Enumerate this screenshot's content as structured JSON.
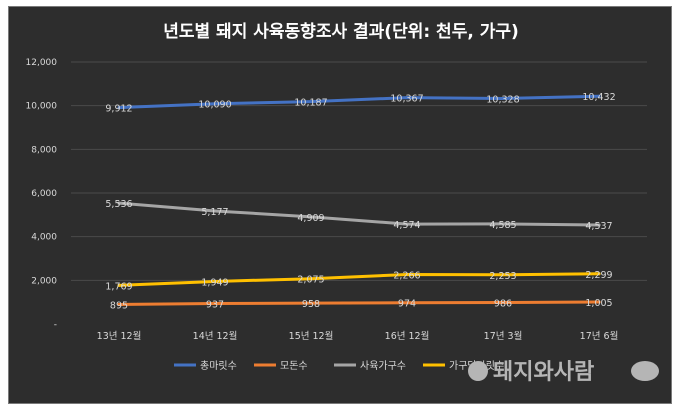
{
  "chart_data": {
    "type": "line",
    "title": "년도별 돼지 사육동향조사 결과(단위: 천두, 가구)",
    "categories": [
      "13년 12월",
      "14년 12월",
      "15년 12월",
      "16년 12월",
      "17년 3월",
      "17년 6월"
    ],
    "y_tick_labels": [
      "-",
      "2,000",
      "4,000",
      "6,000",
      "8,000",
      "10,000",
      "12,000"
    ],
    "ylim": [
      0,
      12000
    ],
    "grid": true,
    "legend_position": "bottom",
    "series": [
      {
        "name": "총마릿수",
        "color": "#4472c4",
        "values": [
          9912,
          10090,
          10187,
          10367,
          10328,
          10432
        ],
        "labels": [
          "9,912",
          "10,090",
          "10,187",
          "10,367",
          "10,328",
          "10,432"
        ]
      },
      {
        "name": "모돈수",
        "color": "#ed7d31",
        "values": [
          895,
          937,
          958,
          974,
          986,
          1005
        ],
        "labels": [
          "895",
          "937",
          "958",
          "974",
          "986",
          "1,005"
        ]
      },
      {
        "name": "사육가구수",
        "color": "#a5a5a5",
        "values": [
          5536,
          5177,
          4909,
          4574,
          4585,
          4537
        ],
        "labels": [
          "5,536",
          "5,177",
          "4,909",
          "4,574",
          "4,585",
          "4,537"
        ]
      },
      {
        "name": "가구당마릿수",
        "color": "#ffc000",
        "values": [
          1769,
          1949,
          2075,
          2266,
          2253,
          2299
        ],
        "labels": [
          "1,769",
          "1,949",
          "2,075",
          "2,266",
          "2,253",
          "2,299"
        ]
      }
    ]
  },
  "watermark": "돼지와사람"
}
